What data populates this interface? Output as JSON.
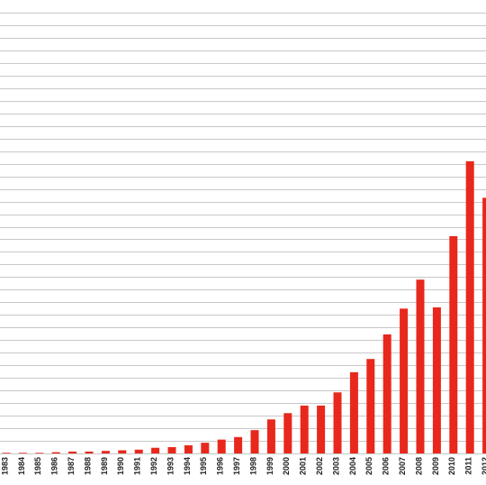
{
  "chart_data": {
    "type": "bar",
    "categories": [
      "1983",
      "1984",
      "1985",
      "1986",
      "1987",
      "1988",
      "1989",
      "1990",
      "1991",
      "1992",
      "1993",
      "1994",
      "1995",
      "1996",
      "1997",
      "1998",
      "1999",
      "2000",
      "2001",
      "2002",
      "2003",
      "2004",
      "2005",
      "2006",
      "2007",
      "2008",
      "2009",
      "2010",
      "2011",
      "2012"
    ],
    "values": [
      0.05,
      0.05,
      0.05,
      0.1,
      0.15,
      0.15,
      0.2,
      0.25,
      0.3,
      0.45,
      0.5,
      0.65,
      0.85,
      1.1,
      1.3,
      1.85,
      2.7,
      3.2,
      3.8,
      3.8,
      4.85,
      6.45,
      7.5,
      9.45,
      11.5,
      13.8,
      11.6,
      17.25,
      23.2,
      20.3
    ],
    "color": "#e8281c",
    "ylim": [
      0,
      35
    ],
    "yticks": [
      0,
      1,
      2,
      3,
      4,
      5,
      6,
      7,
      8,
      9,
      10,
      11,
      12,
      13,
      14,
      15,
      16,
      17,
      18,
      19,
      20,
      21,
      22,
      23,
      24,
      25,
      26,
      27,
      28,
      29,
      30,
      31,
      32,
      33,
      34,
      35
    ],
    "grid": true
  }
}
